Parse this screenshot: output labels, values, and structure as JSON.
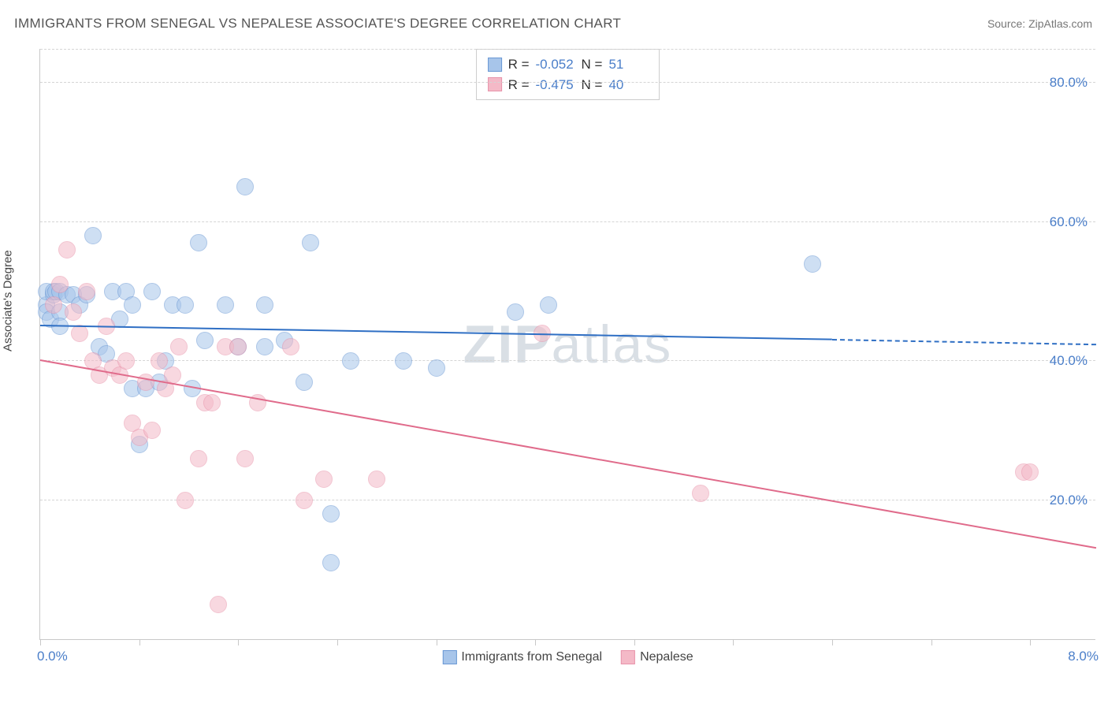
{
  "title": "IMMIGRANTS FROM SENEGAL VS NEPALESE ASSOCIATE'S DEGREE CORRELATION CHART",
  "source": "Source: ZipAtlas.com",
  "watermark_bold": "ZIP",
  "watermark_rest": "atlas",
  "chart": {
    "type": "scatter",
    "xlabel": "",
    "ylabel": "Associate's Degree",
    "xlim": [
      0.0,
      8.0
    ],
    "ylim": [
      0.0,
      85.0
    ],
    "xlim_labels": [
      "0.0%",
      "8.0%"
    ],
    "ytick_step": 20.0,
    "ytick_labels": [
      "20.0%",
      "40.0%",
      "60.0%",
      "80.0%"
    ],
    "ytick_values": [
      20,
      40,
      60,
      80
    ],
    "xtick_values": [
      0,
      0.75,
      1.5,
      2.25,
      3.0,
      3.75,
      4.5,
      5.25,
      6.0,
      6.75,
      7.5
    ],
    "grid_color": "#d5d5d5",
    "axis_color": "#c8c8c8",
    "background_color": "#ffffff",
    "label_fontsize": 15,
    "tick_fontsize": 17,
    "tick_color": "#4a7ec9",
    "point_radius": 11,
    "point_opacity": 0.55,
    "series": [
      {
        "name": "Immigrants from Senegal",
        "fill_color": "#a7c5ea",
        "stroke_color": "#6a98d4",
        "trend_color": "#2f6fc4",
        "R": "-0.052",
        "N": "51",
        "trend": {
          "x0": 0.0,
          "y0": 45.0,
          "x1": 6.0,
          "y1": 43.0,
          "x1_dash": 8.0,
          "y1_dash": 42.3
        },
        "points": [
          [
            0.05,
            48
          ],
          [
            0.05,
            50
          ],
          [
            0.05,
            47
          ],
          [
            0.08,
            46
          ],
          [
            0.1,
            49.5
          ],
          [
            0.1,
            50
          ],
          [
            0.12,
            50
          ],
          [
            0.15,
            50
          ],
          [
            0.15,
            47
          ],
          [
            0.15,
            45
          ],
          [
            0.2,
            49.5
          ],
          [
            0.25,
            49.5
          ],
          [
            0.3,
            48
          ],
          [
            0.35,
            49.5
          ],
          [
            0.4,
            58
          ],
          [
            0.45,
            42
          ],
          [
            0.5,
            41
          ],
          [
            0.55,
            50
          ],
          [
            0.6,
            46
          ],
          [
            0.65,
            50
          ],
          [
            0.7,
            48
          ],
          [
            0.7,
            36
          ],
          [
            0.75,
            28
          ],
          [
            0.8,
            36
          ],
          [
            0.85,
            50
          ],
          [
            0.9,
            37
          ],
          [
            0.95,
            40
          ],
          [
            1.0,
            48
          ],
          [
            1.1,
            48
          ],
          [
            1.15,
            36
          ],
          [
            1.2,
            57
          ],
          [
            1.25,
            43
          ],
          [
            1.4,
            48
          ],
          [
            1.5,
            42
          ],
          [
            1.55,
            65
          ],
          [
            1.7,
            48
          ],
          [
            1.7,
            42
          ],
          [
            1.85,
            43
          ],
          [
            2.0,
            37
          ],
          [
            2.05,
            57
          ],
          [
            2.2,
            18
          ],
          [
            2.2,
            11
          ],
          [
            2.35,
            40
          ],
          [
            2.75,
            40
          ],
          [
            3.0,
            39
          ],
          [
            3.6,
            47
          ],
          [
            3.85,
            48
          ],
          [
            5.85,
            54
          ]
        ]
      },
      {
        "name": "Nepalese",
        "fill_color": "#f4b9c7",
        "stroke_color": "#e894ab",
        "trend_color": "#e06b8b",
        "R": "-0.475",
        "N": "40",
        "trend": {
          "x0": 0.0,
          "y0": 40.0,
          "x1": 8.0,
          "y1": 13.0
        },
        "points": [
          [
            0.1,
            48
          ],
          [
            0.15,
            51
          ],
          [
            0.2,
            56
          ],
          [
            0.25,
            47
          ],
          [
            0.3,
            44
          ],
          [
            0.35,
            50
          ],
          [
            0.4,
            40
          ],
          [
            0.45,
            38
          ],
          [
            0.5,
            45
          ],
          [
            0.55,
            39
          ],
          [
            0.6,
            38
          ],
          [
            0.65,
            40
          ],
          [
            0.7,
            31
          ],
          [
            0.75,
            29
          ],
          [
            0.8,
            37
          ],
          [
            0.85,
            30
          ],
          [
            0.9,
            40
          ],
          [
            0.95,
            36
          ],
          [
            1.0,
            38
          ],
          [
            1.05,
            42
          ],
          [
            1.1,
            20
          ],
          [
            1.2,
            26
          ],
          [
            1.25,
            34
          ],
          [
            1.3,
            34
          ],
          [
            1.35,
            5
          ],
          [
            1.4,
            42
          ],
          [
            1.5,
            42
          ],
          [
            1.55,
            26
          ],
          [
            1.65,
            34
          ],
          [
            1.9,
            42
          ],
          [
            2.0,
            20
          ],
          [
            2.15,
            23
          ],
          [
            2.55,
            23
          ],
          [
            3.8,
            44
          ],
          [
            5.0,
            21
          ],
          [
            7.45,
            24
          ],
          [
            7.5,
            24
          ]
        ]
      }
    ]
  },
  "legend_stats": {
    "rows": [
      {
        "swatch_fill": "#a7c5ea",
        "swatch_stroke": "#6a98d4",
        "R_label": "R =",
        "R": "-0.052",
        "N_label": "N =",
        "N": "51"
      },
      {
        "swatch_fill": "#f4b9c7",
        "swatch_stroke": "#e894ab",
        "R_label": "R =",
        "R": "-0.475",
        "N_label": "N =",
        "N": "40"
      }
    ]
  },
  "legend_bottom": [
    {
      "swatch_fill": "#a7c5ea",
      "swatch_stroke": "#6a98d4",
      "label": "Immigrants from Senegal"
    },
    {
      "swatch_fill": "#f4b9c7",
      "swatch_stroke": "#e894ab",
      "label": "Nepalese"
    }
  ]
}
